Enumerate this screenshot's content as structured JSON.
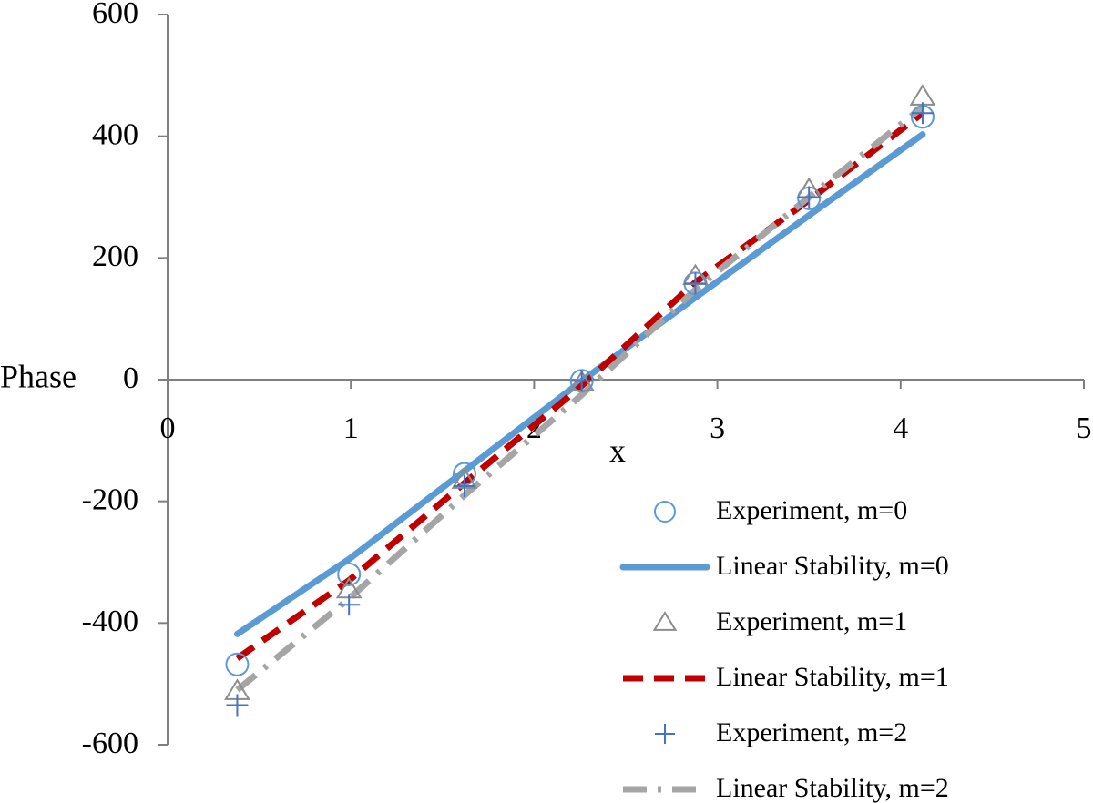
{
  "chart_data": {
    "type": "line",
    "title": "",
    "xlabel": "x",
    "ylabel": "Phase",
    "xlim": [
      0,
      5
    ],
    "ylim": [
      -600,
      600
    ],
    "x_ticks": [
      "0",
      "1",
      "2",
      "3",
      "4",
      "5"
    ],
    "y_ticks": [
      "600",
      "400",
      "200",
      "0",
      "-200",
      "-400",
      "-600"
    ],
    "grid": false,
    "legend_position": "bottom-right",
    "colors": {
      "m0": "#5b9bd5",
      "m1": "#c00000",
      "m2_line": "#a5a5a5",
      "m1_marker": "#8c8c8c",
      "m2_marker": "#4472c4"
    },
    "series": [
      {
        "name": "Experiment, m=0",
        "kind": "marker",
        "marker": "circle",
        "x": [
          0.38,
          0.99,
          1.62,
          2.26,
          2.88,
          3.5,
          4.12
        ],
        "y": [
          -468,
          -320,
          -155,
          -2,
          158,
          298,
          432
        ]
      },
      {
        "name": "Linear Stability, m=0",
        "kind": "line",
        "style": "solid",
        "x": [
          0.38,
          0.99,
          1.62,
          2.26,
          2.88,
          3.5,
          4.12
        ],
        "y": [
          -418,
          -295,
          -150,
          -2,
          135,
          270,
          403
        ]
      },
      {
        "name": "Experiment, m=1",
        "kind": "marker",
        "marker": "triangle",
        "x": [
          0.38,
          0.99,
          1.62,
          2.26,
          2.88,
          3.5,
          4.12
        ],
        "y": [
          -512,
          -345,
          -165,
          -5,
          170,
          312,
          465
        ]
      },
      {
        "name": "Linear Stability, m=1",
        "kind": "line",
        "style": "dashed",
        "x": [
          0.38,
          0.99,
          1.62,
          2.26,
          2.88,
          3.5,
          4.12
        ],
        "y": [
          -458,
          -330,
          -170,
          -10,
          160,
          295,
          438
        ]
      },
      {
        "name": "Experiment, m=2",
        "kind": "marker",
        "marker": "plus",
        "x": [
          0.38,
          0.99,
          1.62,
          2.26,
          2.88,
          3.5,
          4.12
        ],
        "y": [
          -535,
          -370,
          -175,
          -2,
          158,
          300,
          438
        ]
      },
      {
        "name": "Linear Stability, m=2",
        "kind": "line",
        "style": "dash-dot",
        "x": [
          0.38,
          0.99,
          1.62,
          2.26,
          2.88,
          3.5,
          4.12
        ],
        "y": [
          -510,
          -360,
          -190,
          -25,
          148,
          300,
          448
        ]
      }
    ]
  }
}
